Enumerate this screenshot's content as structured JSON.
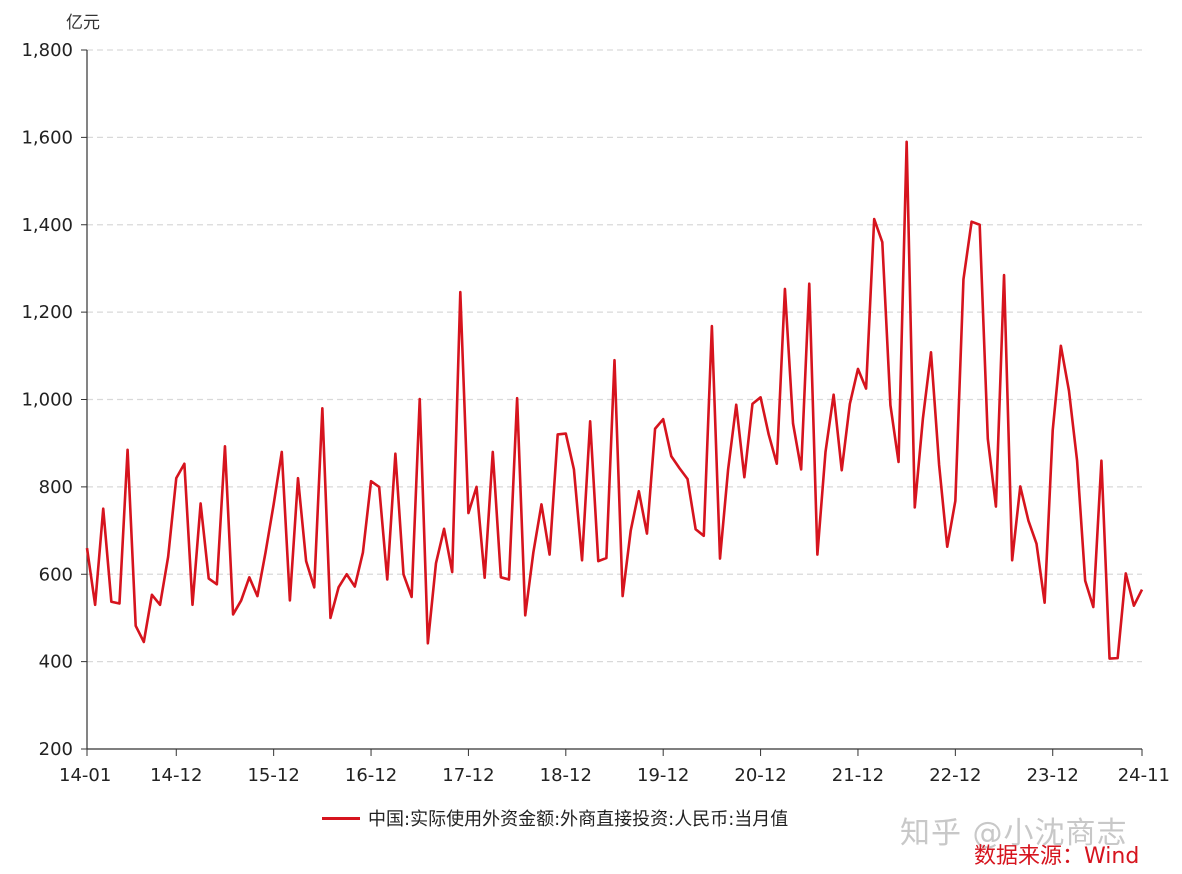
{
  "y_unit": "亿元",
  "legend_label": "中国:实际使用外资金额:外商直接投资:人民币:当月值",
  "watermark": "知乎 @小沈商志",
  "source": "数据来源：Wind",
  "colors": {
    "series": "#d6141e",
    "grid": "#d9d9d9",
    "axis": "#333333"
  },
  "chart_data": {
    "type": "line",
    "ylim": [
      200,
      1800
    ],
    "yticks": [
      200,
      400,
      600,
      800,
      1000,
      1200,
      1400,
      1600,
      1800
    ],
    "ytick_labels": [
      "200",
      "400",
      "600",
      "800",
      "1,000",
      "1,200",
      "1,400",
      "1,600",
      "1,800"
    ],
    "xtick_indices": [
      0,
      11,
      23,
      35,
      47,
      59,
      71,
      83,
      95,
      107,
      119,
      130
    ],
    "xtick_labels": [
      "14-01",
      "14-12",
      "15-12",
      "16-12",
      "17-12",
      "18-12",
      "19-12",
      "20-12",
      "21-12",
      "22-12",
      "23-12",
      "24-11"
    ],
    "grid": "horizontal-dashed",
    "legend": "bottom",
    "series": [
      {
        "name": "中国:实际使用外资金额:外商直接投资:人民币:当月值",
        "start": "2014-01",
        "values": [
          660,
          530,
          750,
          537,
          533,
          885,
          482,
          445,
          553,
          530,
          640,
          820,
          853,
          530,
          762,
          590,
          577,
          893,
          508,
          540,
          593,
          550,
          650,
          760,
          880,
          540,
          820,
          630,
          570,
          980,
          500,
          570,
          600,
          572,
          650,
          813,
          800,
          588,
          876,
          600,
          548,
          1001,
          442,
          625,
          704,
          605,
          1246,
          740,
          800,
          592,
          880,
          593,
          588,
          1003,
          506,
          650,
          760,
          645,
          920,
          922,
          840,
          632,
          950,
          630,
          637,
          1090,
          550,
          700,
          790,
          693,
          933,
          955,
          870,
          843,
          818,
          703,
          688,
          1168,
          636,
          840,
          988,
          822,
          990,
          1005,
          920,
          853,
          1253,
          945,
          840,
          1265,
          645,
          880,
          1011,
          838,
          990,
          1070,
          1025,
          1413,
          1360,
          987,
          857,
          1590,
          753,
          956,
          1108,
          850,
          663,
          768,
          1275,
          1407,
          1400,
          910,
          755,
          1285,
          632,
          801,
          723,
          670,
          535,
          930,
          1123,
          1020,
          860,
          585,
          525,
          860,
          407,
          408,
          602,
          528,
          565
        ]
      }
    ]
  }
}
